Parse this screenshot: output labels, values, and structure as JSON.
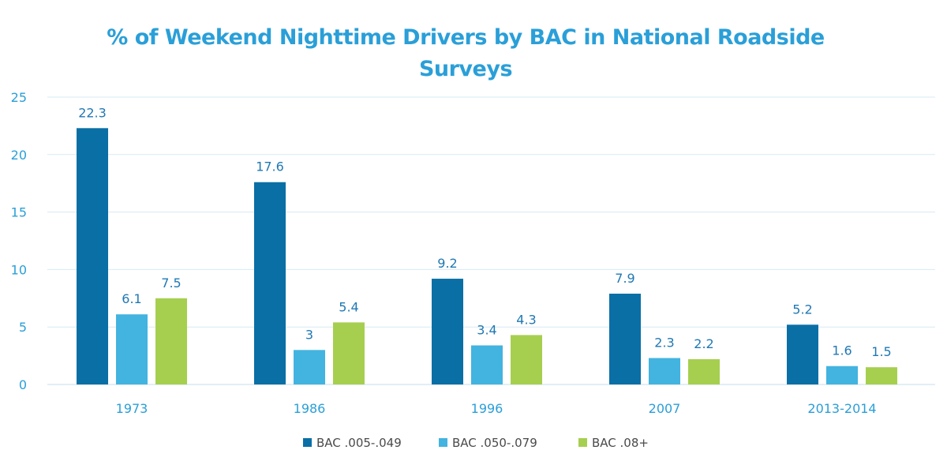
{
  "chart_data": {
    "type": "bar",
    "title_lines": [
      "% of Weekend Nighttime Drivers by BAC in National Roadside",
      "Surveys"
    ],
    "categories": [
      "1973",
      "1986",
      "1996",
      "2007",
      "2013-2014"
    ],
    "series": [
      {
        "name": "BAC .005-.049",
        "color": "#0a6fa5",
        "values": [
          22.3,
          17.6,
          9.2,
          7.9,
          5.2
        ],
        "labels": [
          "22.3",
          "17.6",
          "9.2",
          "7.9",
          "5.2"
        ]
      },
      {
        "name": "BAC .050-.079",
        "color": "#43b3e0",
        "values": [
          6.1,
          3,
          3.4,
          2.3,
          1.6
        ],
        "labels": [
          "6.1",
          "3",
          "3.4",
          "2.3",
          "1.6"
        ]
      },
      {
        "name": "BAC .08+",
        "color": "#a6cf4f",
        "values": [
          7.5,
          5.4,
          4.3,
          2.2,
          1.5
        ],
        "labels": [
          "7.5",
          "5.4",
          "4.3",
          "2.2",
          "1.5"
        ]
      }
    ],
    "y_ticks": [
      "0",
      "5",
      "10",
      "15",
      "20",
      "25"
    ],
    "ylim": [
      0,
      25
    ],
    "grid": true,
    "legend_position": "bottom",
    "xlabel": "",
    "ylabel": ""
  },
  "colors": {
    "title": "#2a9fd8",
    "axis_text": "#2a9fd8",
    "data_label": "#1f78b4",
    "grid": "#d7eaf4"
  }
}
